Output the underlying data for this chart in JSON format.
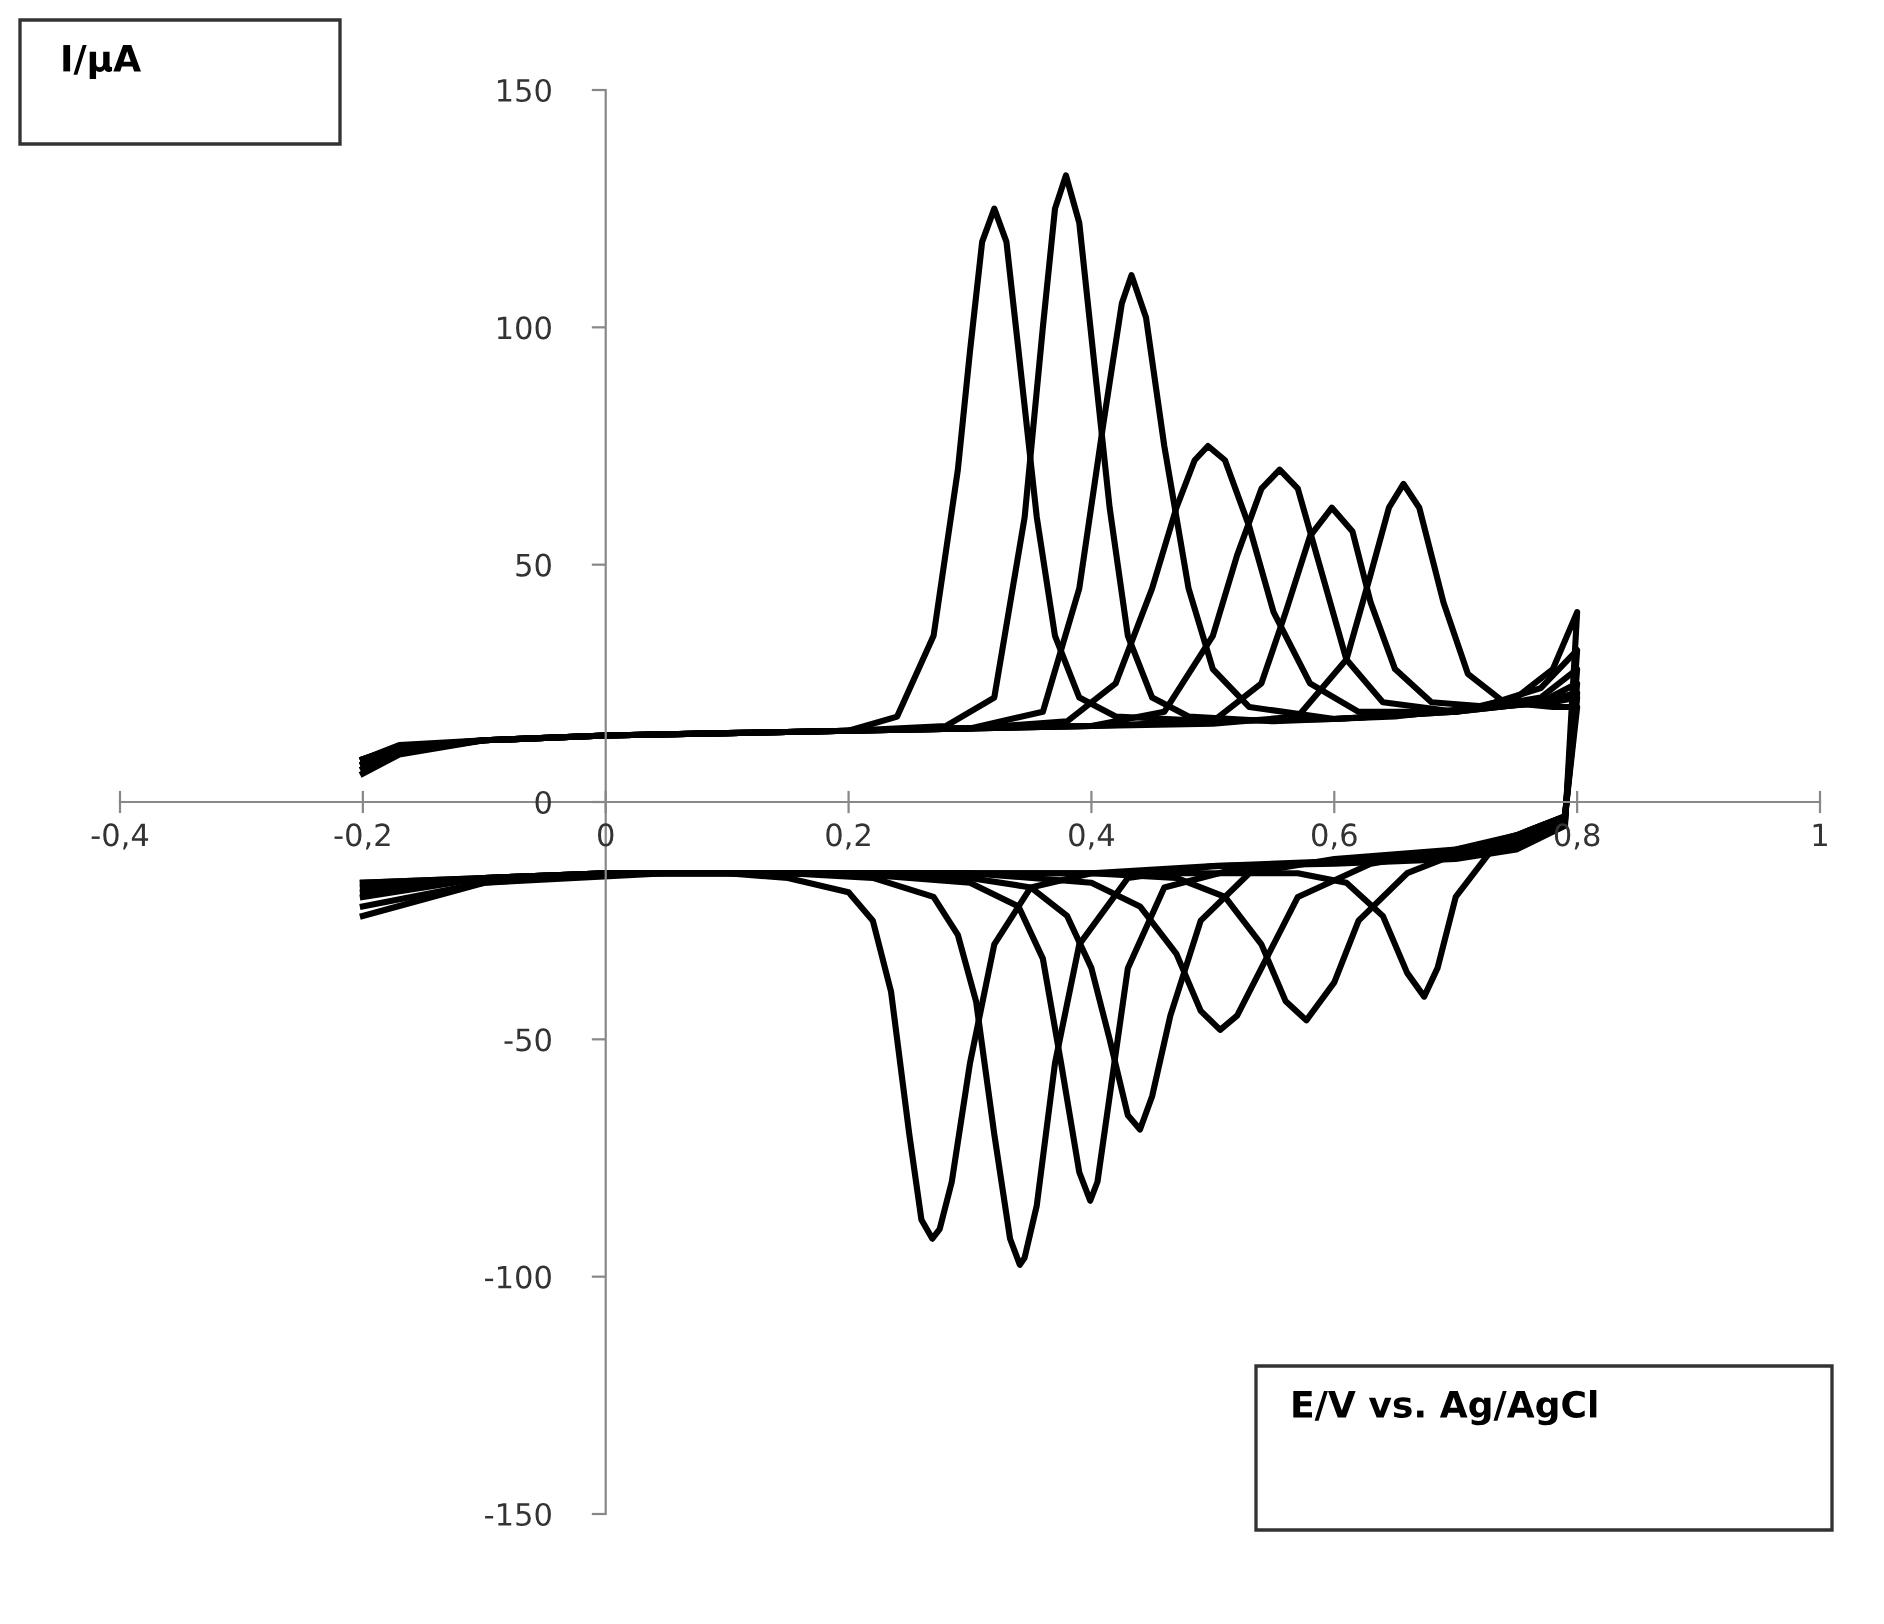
{
  "chart_data": {
    "type": "line",
    "xlabel": "E/V vs. Ag/AgCl",
    "ylabel": "I/μA",
    "xlim": [
      -0.4,
      1
    ],
    "ylim": [
      -150,
      150
    ],
    "xticks": [
      {
        "value": -0.4,
        "label": "-0,4"
      },
      {
        "value": -0.2,
        "label": "-0,2"
      },
      0,
      {
        "value": 0.2,
        "label": "0,2"
      },
      {
        "value": 0.4,
        "label": "0,4"
      },
      {
        "value": 0.6,
        "label": "0,6"
      },
      {
        "value": 0.8,
        "label": "0,8"
      },
      1
    ],
    "yticks": [
      -150,
      -100,
      -50,
      0,
      50,
      100,
      150
    ],
    "grid": false,
    "legend": false,
    "marker": "none",
    "line_style": "solid",
    "series": [
      {
        "color": "#000000",
        "x": [
          -0.2,
          -0.17,
          -0.1,
          0,
          0.1,
          0.2,
          0.24,
          0.27,
          0.29,
          0.3,
          0.31,
          0.32,
          0.33,
          0.34,
          0.355,
          0.37,
          0.39,
          0.42,
          0.5,
          0.6,
          0.7,
          0.75,
          0.78,
          0.8,
          0.79,
          0.75,
          0.7,
          0.6,
          0.5,
          0.4,
          0.35,
          0.32,
          0.3,
          0.285,
          0.275,
          0.269,
          0.26,
          0.25,
          0.235,
          0.22,
          0.2,
          0.15,
          0.1,
          0,
          -0.1,
          -0.2
        ],
        "values": [
          6,
          10,
          13,
          14,
          14.5,
          15,
          18,
          35,
          70,
          95,
          118,
          125,
          118,
          95,
          60,
          35,
          22,
          18,
          17,
          17.5,
          19,
          22,
          28,
          40,
          -5,
          -10,
          -12,
          -13,
          -13.5,
          -15,
          -18,
          -30,
          -55,
          -80,
          -90,
          -92,
          -88,
          -70,
          -40,
          -25,
          -19,
          -16,
          -15,
          -15,
          -17,
          -24
        ]
      },
      {
        "color": "#000000",
        "x": [
          -0.2,
          -0.17,
          -0.1,
          0,
          0.1,
          0.2,
          0.28,
          0.32,
          0.345,
          0.36,
          0.37,
          0.379,
          0.39,
          0.4,
          0.415,
          0.43,
          0.45,
          0.48,
          0.55,
          0.65,
          0.72,
          0.77,
          0.8,
          0.79,
          0.75,
          0.7,
          0.6,
          0.5,
          0.43,
          0.39,
          0.37,
          0.355,
          0.345,
          0.341,
          0.333,
          0.32,
          0.305,
          0.29,
          0.27,
          0.22,
          0.15,
          0.05,
          -0.1,
          -0.2
        ],
        "values": [
          7,
          10.5,
          13,
          14,
          14.5,
          15,
          16,
          22,
          60,
          100,
          125,
          132,
          122,
          98,
          62,
          35,
          22,
          18,
          17,
          18,
          20,
          24,
          32,
          -4,
          -9,
          -11,
          -12.5,
          -13.5,
          -16,
          -30,
          -55,
          -85,
          -96,
          -97.5,
          -92,
          -70,
          -42,
          -28,
          -20,
          -16,
          -15,
          -15,
          -17,
          -22
        ]
      },
      {
        "color": "#000000",
        "x": [
          -0.2,
          -0.17,
          -0.1,
          0,
          0.1,
          0.2,
          0.3,
          0.36,
          0.39,
          0.41,
          0.425,
          0.433,
          0.445,
          0.46,
          0.48,
          0.5,
          0.53,
          0.6,
          0.7,
          0.77,
          0.8,
          0.79,
          0.75,
          0.7,
          0.6,
          0.52,
          0.46,
          0.43,
          0.415,
          0.405,
          0.399,
          0.39,
          0.375,
          0.36,
          0.34,
          0.3,
          0.2,
          0.1,
          0,
          -0.1,
          -0.2
        ],
        "values": [
          8,
          11,
          13,
          14,
          14.5,
          15,
          15.5,
          19,
          45,
          80,
          105,
          111,
          102,
          75,
          45,
          28,
          20,
          17.5,
          19,
          22,
          28,
          -4,
          -8,
          -10.5,
          -12.5,
          -14,
          -18,
          -35,
          -62,
          -80,
          -84,
          -78,
          -55,
          -33,
          -22,
          -17,
          -15,
          -15,
          -15,
          -16,
          -20
        ]
      },
      {
        "color": "#000000",
        "x": [
          -0.2,
          -0.17,
          -0.1,
          0,
          0.1,
          0.2,
          0.3,
          0.38,
          0.42,
          0.45,
          0.47,
          0.485,
          0.496,
          0.51,
          0.53,
          0.55,
          0.58,
          0.62,
          0.7,
          0.77,
          0.8,
          0.79,
          0.75,
          0.7,
          0.6,
          0.53,
          0.49,
          0.465,
          0.45,
          0.44,
          0.43,
          0.415,
          0.4,
          0.38,
          0.35,
          0.3,
          0.2,
          0.1,
          0,
          -0.1,
          -0.2
        ],
        "values": [
          8,
          11,
          13,
          14,
          14.5,
          15,
          15.5,
          17,
          25,
          45,
          62,
          72,
          75,
          72,
          58,
          40,
          25,
          19,
          19,
          21,
          25,
          -3,
          -8,
          -10,
          -12,
          -15,
          -25,
          -45,
          -62,
          -69,
          -66,
          -50,
          -35,
          -24,
          -18,
          -16,
          -15,
          -15,
          -15,
          -16,
          -19
        ]
      },
      {
        "color": "#000000",
        "x": [
          -0.2,
          -0.17,
          -0.1,
          0,
          0.1,
          0.2,
          0.3,
          0.4,
          0.46,
          0.5,
          0.52,
          0.54,
          0.555,
          0.57,
          0.59,
          0.61,
          0.64,
          0.7,
          0.77,
          0.8,
          0.79,
          0.75,
          0.7,
          0.63,
          0.57,
          0.54,
          0.52,
          0.506,
          0.49,
          0.47,
          0.44,
          0.4,
          0.3,
          0.2,
          0.1,
          0,
          -0.1,
          -0.2
        ],
        "values": [
          9,
          11.5,
          13,
          14,
          14.5,
          15,
          15.5,
          16,
          19,
          35,
          52,
          66,
          70,
          66,
          48,
          30,
          21,
          19,
          21,
          23,
          -3,
          -7,
          -10,
          -13,
          -20,
          -35,
          -45,
          -48,
          -44,
          -32,
          -22,
          -17,
          -15,
          -15,
          -15,
          -15,
          -16,
          -18
        ]
      },
      {
        "color": "#000000",
        "x": [
          -0.2,
          -0.17,
          -0.1,
          0,
          0.1,
          0.2,
          0.3,
          0.4,
          0.5,
          0.54,
          0.56,
          0.58,
          0.598,
          0.615,
          0.63,
          0.65,
          0.68,
          0.73,
          0.78,
          0.8,
          0.79,
          0.75,
          0.71,
          0.66,
          0.62,
          0.6,
          0.577,
          0.56,
          0.54,
          0.51,
          0.47,
          0.4,
          0.3,
          0.2,
          0.1,
          0,
          -0.1,
          -0.2
        ],
        "values": [
          9,
          11.5,
          13,
          14,
          14.5,
          15,
          15.5,
          16,
          17,
          25,
          40,
          56,
          62,
          57,
          42,
          28,
          21,
          20,
          21,
          22,
          -3,
          -7,
          -10,
          -15,
          -25,
          -38,
          -46,
          -42,
          -30,
          -20,
          -16,
          -15,
          -15,
          -15,
          -15,
          -15,
          -16,
          -17
        ]
      },
      {
        "color": "#000000",
        "x": [
          -0.2,
          -0.17,
          -0.1,
          0,
          0.1,
          0.2,
          0.3,
          0.4,
          0.5,
          0.57,
          0.61,
          0.63,
          0.645,
          0.657,
          0.67,
          0.69,
          0.71,
          0.74,
          0.78,
          0.8,
          0.79,
          0.76,
          0.73,
          0.7,
          0.685,
          0.674,
          0.66,
          0.64,
          0.61,
          0.57,
          0.5,
          0.4,
          0.3,
          0.2,
          0.1,
          0,
          -0.1,
          -0.2
        ],
        "values": [
          9,
          12,
          13,
          14,
          14.5,
          15,
          15.5,
          16,
          16.5,
          18,
          30,
          48,
          62,
          67,
          62,
          42,
          27,
          21,
          20,
          20,
          -3,
          -6,
          -10,
          -20,
          -35,
          -41,
          -36,
          -24,
          -17,
          -15,
          -15,
          -15,
          -15,
          -15,
          -15,
          -15,
          -16,
          -17
        ]
      }
    ]
  }
}
